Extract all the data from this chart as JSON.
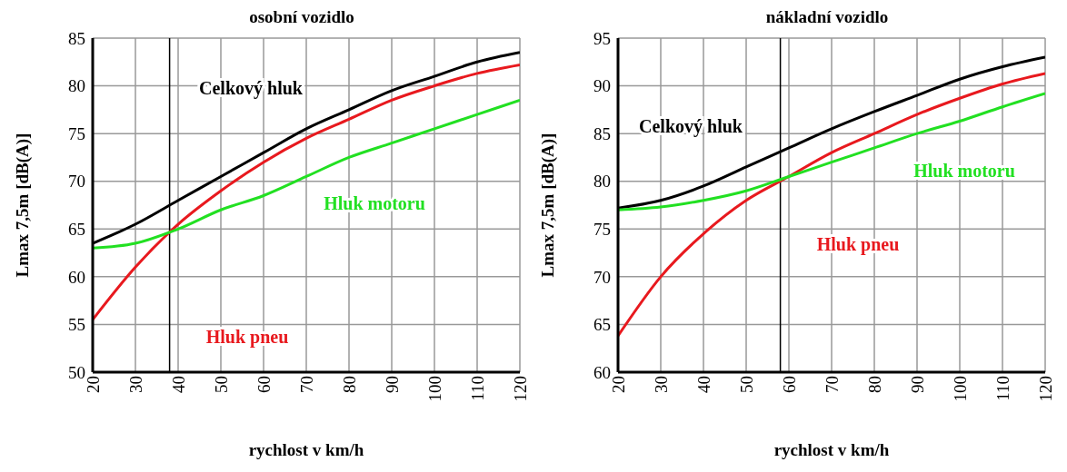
{
  "chart_data": [
    {
      "type": "line",
      "title": "osobní vozidlo",
      "xlabel": "rychlost v km/h",
      "ylabel": "Lmax 7,5m [dB(A)]",
      "x": [
        20,
        30,
        40,
        50,
        60,
        70,
        80,
        90,
        100,
        110,
        120
      ],
      "xlim": [
        20,
        120
      ],
      "xticks": [
        20,
        30,
        40,
        50,
        60,
        70,
        80,
        90,
        100,
        110,
        120
      ],
      "ylim": [
        50,
        85
      ],
      "yticks": [
        50,
        55,
        60,
        65,
        70,
        75,
        80,
        85
      ],
      "grid": true,
      "marker": "none",
      "line_style": "solid",
      "series": [
        {
          "name": "Celkový hluk",
          "color": "#000000",
          "values": [
            63.5,
            65.5,
            68,
            70.5,
            73,
            75.5,
            77.5,
            79.5,
            81,
            82.5,
            83.5
          ]
        },
        {
          "name": "Hluk pneu",
          "color": "#e8191e",
          "values": [
            55.5,
            61,
            65.5,
            69,
            72,
            74.5,
            76.5,
            78.5,
            80,
            81.3,
            82.2
          ]
        },
        {
          "name": "Hluk motoru",
          "color": "#22e022",
          "values": [
            63,
            63.5,
            65,
            67,
            68.5,
            70.5,
            72.5,
            74,
            75.5,
            77,
            78.5
          ]
        }
      ],
      "ref_lines": [
        {
          "axis": "x",
          "value": 38,
          "color": "#000000"
        }
      ]
    },
    {
      "type": "line",
      "title": "nákladní vozidlo",
      "xlabel": "rychlost v km/h",
      "ylabel": "Lmax 7,5m [dB(A)]",
      "x": [
        20,
        30,
        40,
        50,
        60,
        70,
        80,
        90,
        100,
        110,
        120
      ],
      "xlim": [
        20,
        120
      ],
      "xticks": [
        20,
        30,
        40,
        50,
        60,
        70,
        80,
        90,
        100,
        110,
        120
      ],
      "ylim": [
        60,
        95
      ],
      "yticks": [
        60,
        65,
        70,
        75,
        80,
        85,
        90,
        95
      ],
      "grid": true,
      "marker": "none",
      "line_style": "solid",
      "series": [
        {
          "name": "Celkový hluk",
          "color": "#000000",
          "values": [
            77.2,
            78,
            79.5,
            81.5,
            83.5,
            85.5,
            87.3,
            89,
            90.7,
            92,
            93
          ]
        },
        {
          "name": "Hluk pneu",
          "color": "#e8191e",
          "values": [
            63.8,
            70,
            74.5,
            78,
            80.5,
            83,
            85,
            87,
            88.7,
            90.2,
            91.3
          ]
        },
        {
          "name": "Hluk motoru",
          "color": "#22e022",
          "values": [
            77,
            77.3,
            78,
            79,
            80.5,
            82,
            83.5,
            85,
            86.3,
            87.8,
            89.2
          ]
        }
      ],
      "ref_lines": [
        {
          "axis": "x",
          "value": 58,
          "color": "#000000"
        }
      ]
    }
  ]
}
